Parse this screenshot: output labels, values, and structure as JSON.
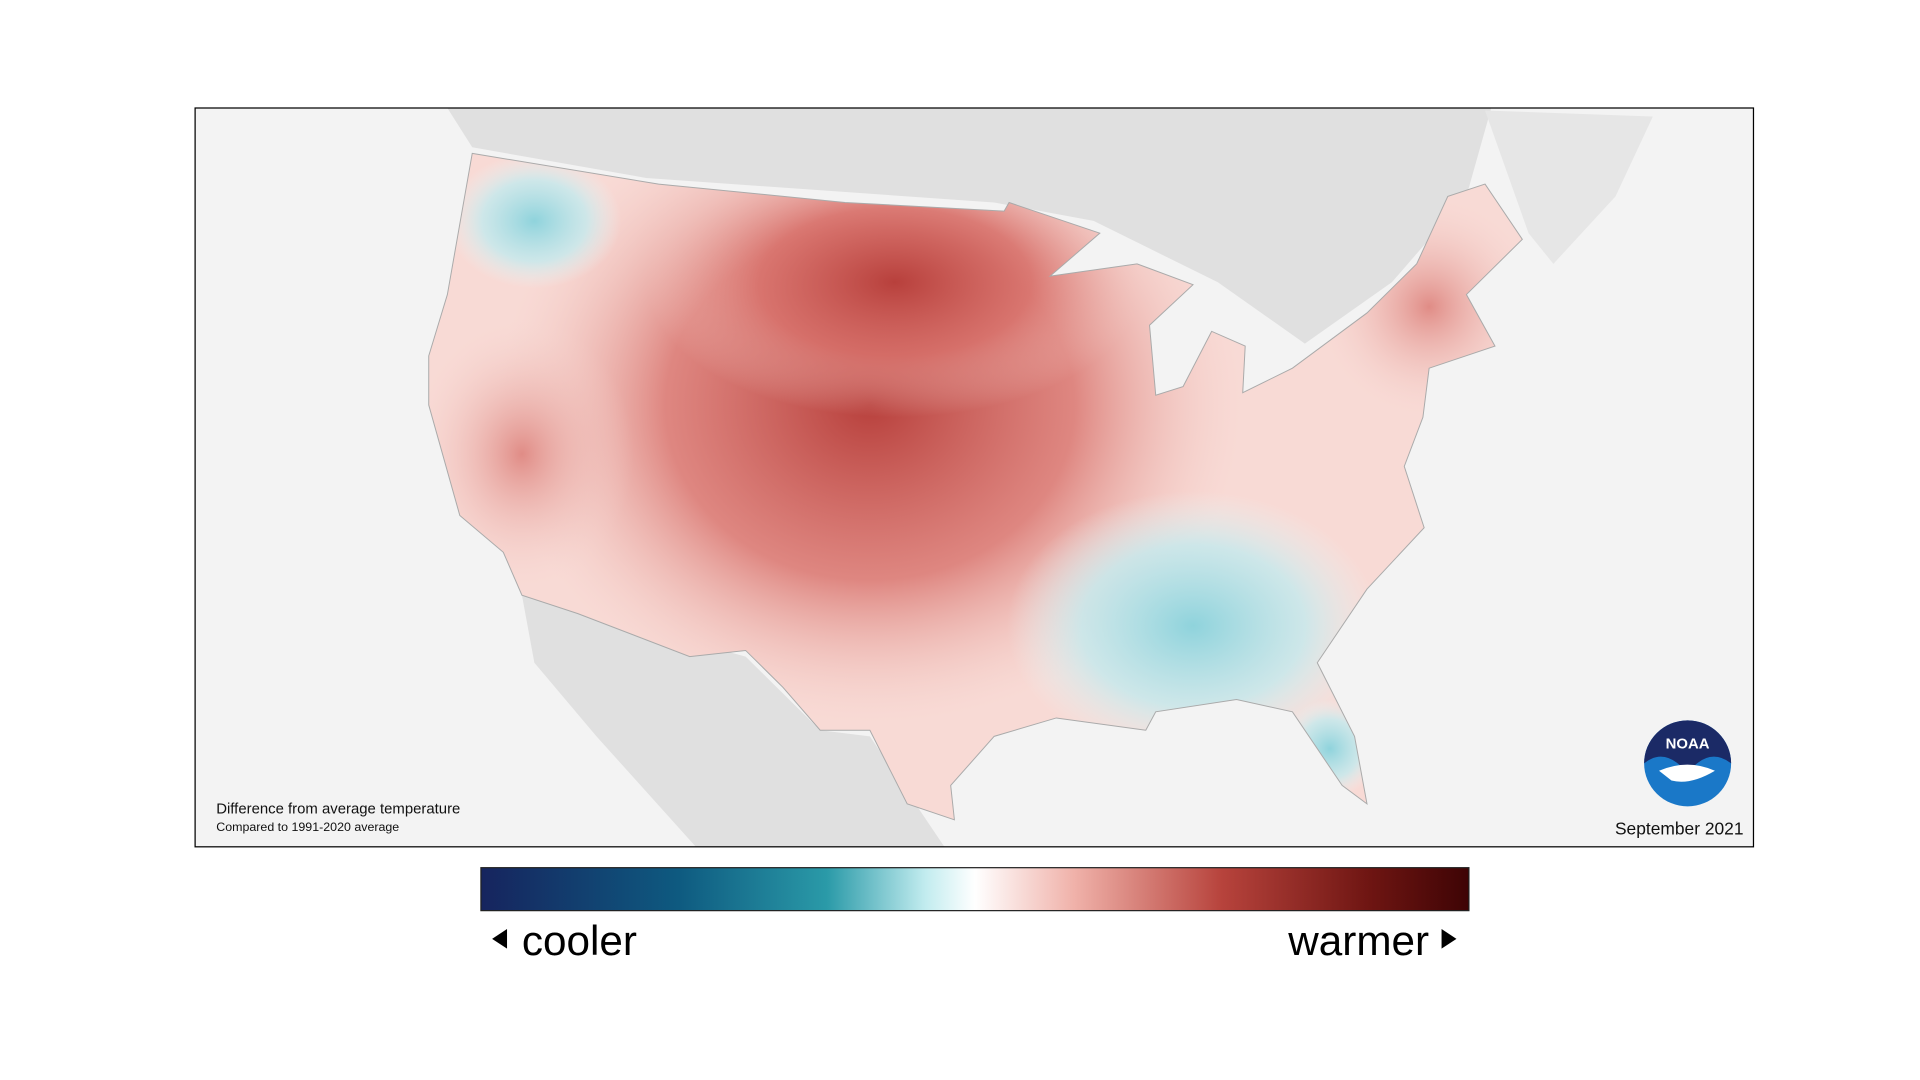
{
  "map_title": "Difference from average temperature",
  "map_subtitle": "Compared to 1991-2020 average",
  "date": "September 2021",
  "logo": "NOAA",
  "legend": {
    "low": "cooler",
    "high": "warmer"
  }
}
